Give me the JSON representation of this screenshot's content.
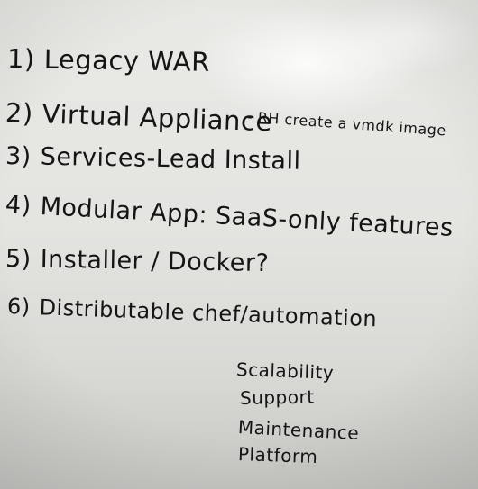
{
  "whiteboard": {
    "items": [
      {
        "number": "1)",
        "text": "Legacy WAR"
      },
      {
        "number": "2)",
        "text": "Virtual Appliance",
        "note": "- RH create a vmdk image"
      },
      {
        "number": "3)",
        "text": "Services-Lead Install"
      },
      {
        "number": "4)",
        "text": "Modular App: SaaS-only features"
      },
      {
        "number": "5)",
        "text": "Installer / Docker?"
      },
      {
        "number": "6)",
        "text": "Distributable chef/automation"
      }
    ],
    "side_list": [
      "Scalability",
      "Support",
      "Maintenance",
      "Platform"
    ]
  }
}
